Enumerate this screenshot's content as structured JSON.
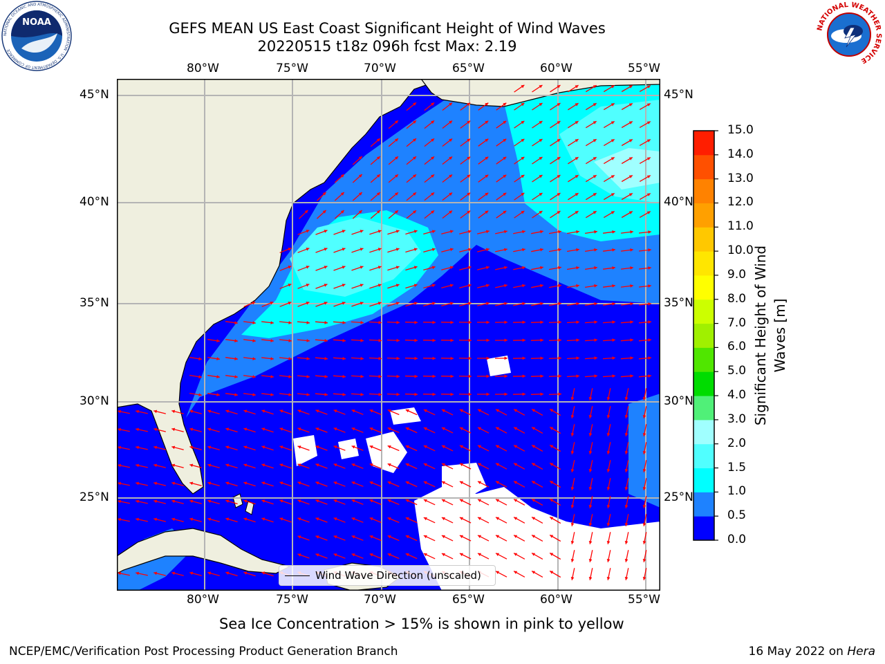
{
  "title_line1": "GEFS MEAN US East Coast Significant Height of Wind Waves",
  "title_line2": "20220515 t18z 096h fcst   Max: 2.19",
  "map": {
    "lon_labels": [
      "80°W",
      "75°W",
      "70°W",
      "65°W",
      "60°W",
      "55°W"
    ],
    "lat_labels": [
      "45°N",
      "40°N",
      "35°N",
      "30°N",
      "25°N"
    ],
    "land_color": "#efefdf",
    "gridline_color": "#b4b4b4",
    "arrow_color": "#ff0000",
    "legend_label": "Wind Wave Direction (unscaled)"
  },
  "colorbar": {
    "label": "Significant Height of Wind Waves [m]",
    "ticks": [
      "0.0",
      "0.5",
      "1.0",
      "1.5",
      "2.0",
      "3.0",
      "4.0",
      "5.0",
      "6.0",
      "7.0",
      "8.0",
      "9.0",
      "10.0",
      "11.0",
      "12.0",
      "13.0",
      "14.0",
      "15.0"
    ],
    "colors": [
      "#0000ff",
      "#1e82ff",
      "#00ffff",
      "#50ffff",
      "#a0ffff",
      "#50f078",
      "#00dc00",
      "#50e600",
      "#a0f000",
      "#ccff00",
      "#ffff00",
      "#ffe600",
      "#ffc800",
      "#ffa000",
      "#ff8200",
      "#ff5000",
      "#ff1e00"
    ]
  },
  "caption": "Sea Ice Concentration > 15% is shown in pink to yellow",
  "footer_left": "NCEP/EMC/Verification Post Processing Product Generation Branch",
  "footer_right_date": "16 May 2022 on",
  "footer_right_host": "Hera",
  "logos": {
    "left_text": "NOAA",
    "left_ring_text": "NATIONAL OCEANIC AND ATMOSPHERIC ADMINISTRATION · U.S. DEPARTMENT OF COMMERCE",
    "right_ring_text": "NATIONAL WEATHER SERVICE"
  }
}
